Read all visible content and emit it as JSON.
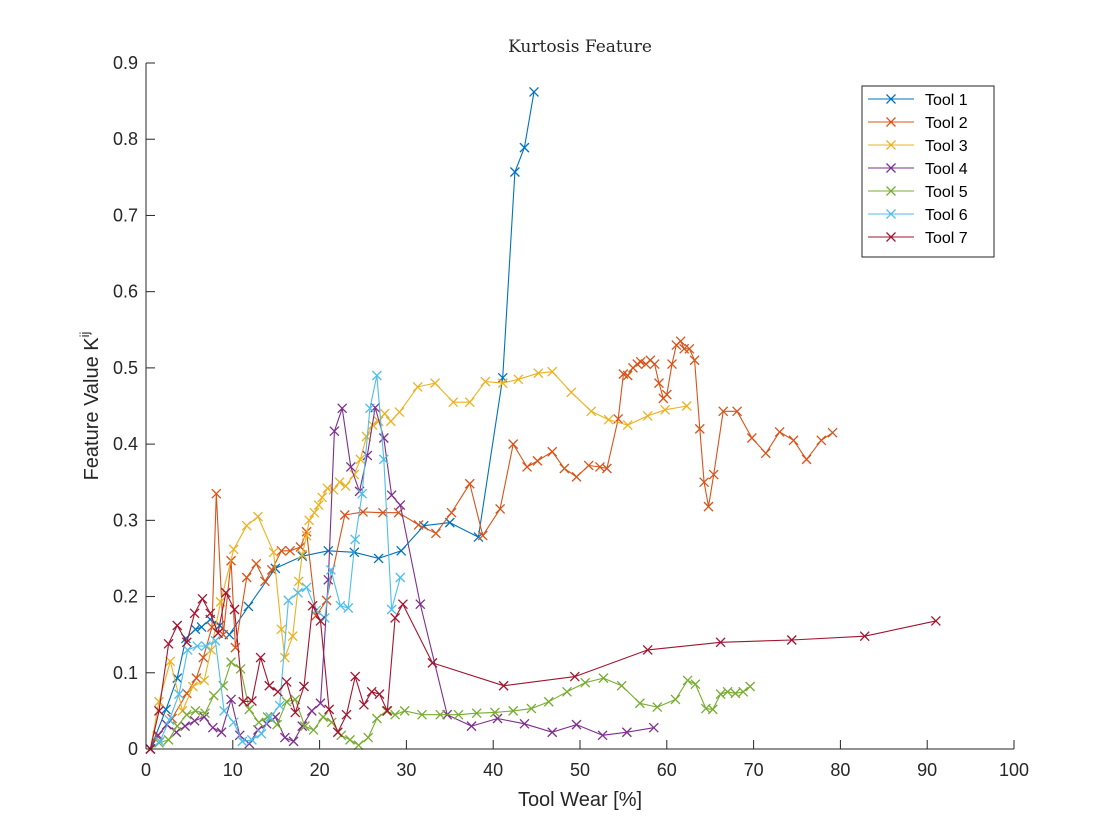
{
  "chart_data": {
    "type": "line",
    "title": "Kurtosis Feature",
    "xlabel": "Tool Wear [%]",
    "ylabel_main": "Feature Value K",
    "ylabel_sup": "ij",
    "xlim": [
      0,
      100
    ],
    "ylim": [
      0,
      0.9
    ],
    "xticks": [
      0,
      10,
      20,
      30,
      40,
      50,
      60,
      70,
      80,
      90,
      100
    ],
    "xtick_labels": [
      "0",
      "10",
      "20",
      "30",
      "40",
      "50",
      "60",
      "70",
      "80",
      "90",
      "100"
    ],
    "yticks": [
      0,
      0.1,
      0.2,
      0.3,
      0.4,
      0.5,
      0.6,
      0.7,
      0.8,
      0.9
    ],
    "ytick_labels": [
      "0",
      "0.1",
      "0.2",
      "0.3",
      "0.4",
      "0.5",
      "0.6",
      "0.7",
      "0.8",
      "0.9"
    ],
    "grid": false,
    "legend_position": "top-right",
    "marker": "x",
    "series": [
      {
        "name": "Tool 1",
        "color": "#0072BD",
        "x": [
          0.5,
          2.3,
          3.6,
          4.6,
          5.7,
          6.4,
          7.4,
          8.5,
          9.6,
          11.8,
          14.9,
          18.0,
          21.0,
          24.0,
          26.8,
          29.4,
          32.0,
          35.0,
          38.3,
          41.1,
          42.5,
          43.6,
          44.7
        ],
        "y": [
          0.0,
          0.052,
          0.093,
          0.145,
          0.157,
          0.16,
          0.17,
          0.162,
          0.15,
          0.187,
          0.237,
          0.253,
          0.26,
          0.258,
          0.25,
          0.26,
          0.293,
          0.297,
          0.278,
          0.487,
          0.757,
          0.789,
          0.862
        ]
      },
      {
        "name": "Tool 2",
        "color": "#D95319",
        "x": [
          0.5,
          1.3,
          3.0,
          4.7,
          5.8,
          6.6,
          7.6,
          8.1,
          8.9,
          9.8,
          10.3,
          11.6,
          12.7,
          13.7,
          14.5,
          15.6,
          16.6,
          17.8,
          18.5,
          19.6,
          20.8,
          22.9,
          25.0,
          27.3,
          29.1,
          31.4,
          33.4,
          35.2,
          37.3,
          38.8,
          40.8,
          42.3,
          43.9,
          45.1,
          46.8,
          48.2,
          49.6,
          51.0,
          52.3,
          53.1,
          54.4,
          55.0,
          55.5,
          56.1,
          56.6,
          57.0,
          57.6,
          58.1,
          58.6,
          59.1,
          59.6,
          60.0,
          60.6,
          61.1,
          61.6,
          62.0,
          62.6,
          63.2,
          63.8,
          64.3,
          64.8,
          65.4,
          66.5,
          68.1,
          69.8,
          71.4,
          73.0,
          74.6,
          76.1,
          77.8,
          79.1
        ],
        "y": [
          0.0,
          0.017,
          0.04,
          0.073,
          0.093,
          0.12,
          0.16,
          0.335,
          0.15,
          0.247,
          0.133,
          0.225,
          0.243,
          0.22,
          0.235,
          0.26,
          0.26,
          0.265,
          0.285,
          0.175,
          0.195,
          0.307,
          0.311,
          0.31,
          0.31,
          0.294,
          0.283,
          0.31,
          0.348,
          0.28,
          0.315,
          0.4,
          0.37,
          0.378,
          0.39,
          0.368,
          0.357,
          0.372,
          0.37,
          0.368,
          0.433,
          0.492,
          0.49,
          0.5,
          0.505,
          0.508,
          0.505,
          0.51,
          0.505,
          0.48,
          0.46,
          0.465,
          0.505,
          0.53,
          0.535,
          0.525,
          0.525,
          0.51,
          0.42,
          0.35,
          0.318,
          0.36,
          0.443,
          0.443,
          0.408,
          0.388,
          0.416,
          0.405,
          0.38,
          0.405,
          0.415
        ]
      },
      {
        "name": "Tool 3",
        "color": "#EDB120",
        "x": [
          0.5,
          1.5,
          2.8,
          4.2,
          5.4,
          6.7,
          7.5,
          8.6,
          10.1,
          11.6,
          12.9,
          14.7,
          15.6,
          16.0,
          16.9,
          17.6,
          18.0,
          18.5,
          18.8,
          19.4,
          19.9,
          20.3,
          20.9,
          21.6,
          22.3,
          23.0,
          24.0,
          24.7,
          25.4,
          26.1,
          26.8,
          27.5,
          28.2,
          29.2,
          31.3,
          33.3,
          35.4,
          37.3,
          39.1,
          41.1,
          42.9,
          45.2,
          46.8,
          49.0,
          51.3,
          53.3,
          55.5,
          57.8,
          59.8,
          62.3
        ],
        "y": [
          0.0,
          0.062,
          0.115,
          0.05,
          0.082,
          0.09,
          0.13,
          0.193,
          0.262,
          0.293,
          0.305,
          0.258,
          0.157,
          0.12,
          0.148,
          0.22,
          0.255,
          0.28,
          0.3,
          0.31,
          0.32,
          0.33,
          0.342,
          0.34,
          0.35,
          0.345,
          0.36,
          0.38,
          0.41,
          0.425,
          0.43,
          0.44,
          0.43,
          0.442,
          0.475,
          0.48,
          0.455,
          0.455,
          0.482,
          0.48,
          0.485,
          0.493,
          0.495,
          0.468,
          0.443,
          0.432,
          0.425,
          0.437,
          0.445,
          0.45
        ]
      },
      {
        "name": "Tool 4",
        "color": "#7E2F8E",
        "x": [
          0.5,
          1.4,
          2.4,
          3.5,
          4.5,
          5.6,
          6.7,
          7.7,
          8.7,
          9.8,
          10.8,
          11.9,
          12.9,
          13.9,
          14.9,
          16.0,
          17.0,
          18.0,
          19.1,
          20.1,
          21.0,
          21.7,
          22.6,
          23.6,
          24.6,
          25.5,
          26.4,
          27.4,
          28.3,
          29.3,
          31.6,
          34.7,
          37.5,
          40.5,
          43.6,
          46.8,
          49.6,
          52.6,
          55.4,
          58.5
        ],
        "y": [
          0.0,
          0.018,
          0.032,
          0.022,
          0.03,
          0.037,
          0.042,
          0.028,
          0.022,
          0.065,
          0.018,
          0.007,
          0.025,
          0.033,
          0.042,
          0.015,
          0.01,
          0.03,
          0.05,
          0.06,
          0.222,
          0.417,
          0.447,
          0.37,
          0.338,
          0.385,
          0.448,
          0.408,
          0.333,
          0.32,
          0.19,
          0.045,
          0.03,
          0.04,
          0.033,
          0.022,
          0.032,
          0.018,
          0.022,
          0.028
        ]
      },
      {
        "name": "Tool 5",
        "color": "#77AC30",
        "x": [
          0.5,
          1.5,
          2.6,
          3.6,
          4.7,
          5.7,
          6.8,
          7.8,
          8.9,
          9.8,
          10.9,
          11.9,
          13.0,
          14.0,
          15.1,
          16.2,
          17.2,
          18.3,
          19.3,
          20.4,
          21.4,
          22.5,
          23.5,
          24.5,
          25.6,
          26.6,
          27.7,
          28.7,
          29.8,
          31.8,
          33.9,
          36.0,
          38.1,
          40.2,
          42.3,
          44.4,
          46.4,
          48.5,
          50.6,
          52.7,
          54.8,
          56.9,
          58.9,
          61.0,
          62.4,
          63.3,
          64.5,
          65.3,
          66.2,
          67.0,
          67.9,
          68.8,
          69.6
        ],
        "y": [
          0.0,
          0.008,
          0.012,
          0.03,
          0.045,
          0.05,
          0.047,
          0.07,
          0.083,
          0.114,
          0.105,
          0.052,
          0.035,
          0.042,
          0.032,
          0.062,
          0.065,
          0.03,
          0.025,
          0.042,
          0.035,
          0.018,
          0.012,
          0.005,
          0.015,
          0.04,
          0.05,
          0.045,
          0.05,
          0.045,
          0.045,
          0.045,
          0.047,
          0.048,
          0.05,
          0.053,
          0.062,
          0.075,
          0.087,
          0.093,
          0.083,
          0.06,
          0.055,
          0.065,
          0.09,
          0.085,
          0.053,
          0.052,
          0.072,
          0.075,
          0.073,
          0.075,
          0.082
        ]
      },
      {
        "name": "Tool 6",
        "color": "#4DBEEE",
        "x": [
          0.5,
          1.6,
          2.7,
          3.8,
          4.8,
          5.9,
          6.9,
          8.0,
          9.0,
          10.1,
          11.1,
          12.2,
          13.3,
          14.3,
          15.4,
          16.4,
          17.5,
          18.5,
          19.6,
          20.6,
          21.3,
          22.4,
          23.3,
          24.1,
          24.9,
          25.8,
          26.6,
          27.4,
          28.3,
          29.3
        ],
        "y": [
          0.0,
          0.01,
          0.038,
          0.072,
          0.13,
          0.135,
          0.135,
          0.142,
          0.05,
          0.035,
          0.01,
          0.012,
          0.02,
          0.042,
          0.057,
          0.195,
          0.205,
          0.212,
          0.182,
          0.172,
          0.235,
          0.188,
          0.185,
          0.275,
          0.335,
          0.447,
          0.49,
          0.38,
          0.183,
          0.225
        ]
      },
      {
        "name": "Tool 7",
        "color": "#A2142F",
        "x": [
          0.5,
          1.5,
          2.6,
          3.6,
          4.7,
          5.6,
          6.5,
          7.4,
          8.3,
          9.2,
          10.2,
          11.2,
          12.2,
          13.2,
          14.2,
          15.2,
          16.2,
          17.2,
          18.2,
          19.2,
          20.1,
          21.1,
          22.1,
          23.1,
          24.1,
          25.1,
          26.0,
          26.9,
          27.8,
          28.7,
          29.6,
          33.0,
          41.2,
          49.4,
          57.8,
          66.2,
          74.4,
          82.8,
          91.0
        ],
        "y": [
          0.0,
          0.05,
          0.138,
          0.162,
          0.14,
          0.178,
          0.197,
          0.178,
          0.152,
          0.205,
          0.183,
          0.062,
          0.063,
          0.12,
          0.083,
          0.075,
          0.088,
          0.048,
          0.082,
          0.188,
          0.168,
          0.052,
          0.022,
          0.045,
          0.095,
          0.058,
          0.075,
          0.072,
          0.05,
          0.172,
          0.19,
          0.113,
          0.083,
          0.095,
          0.13,
          0.14,
          0.143,
          0.148,
          0.168
        ]
      }
    ]
  }
}
